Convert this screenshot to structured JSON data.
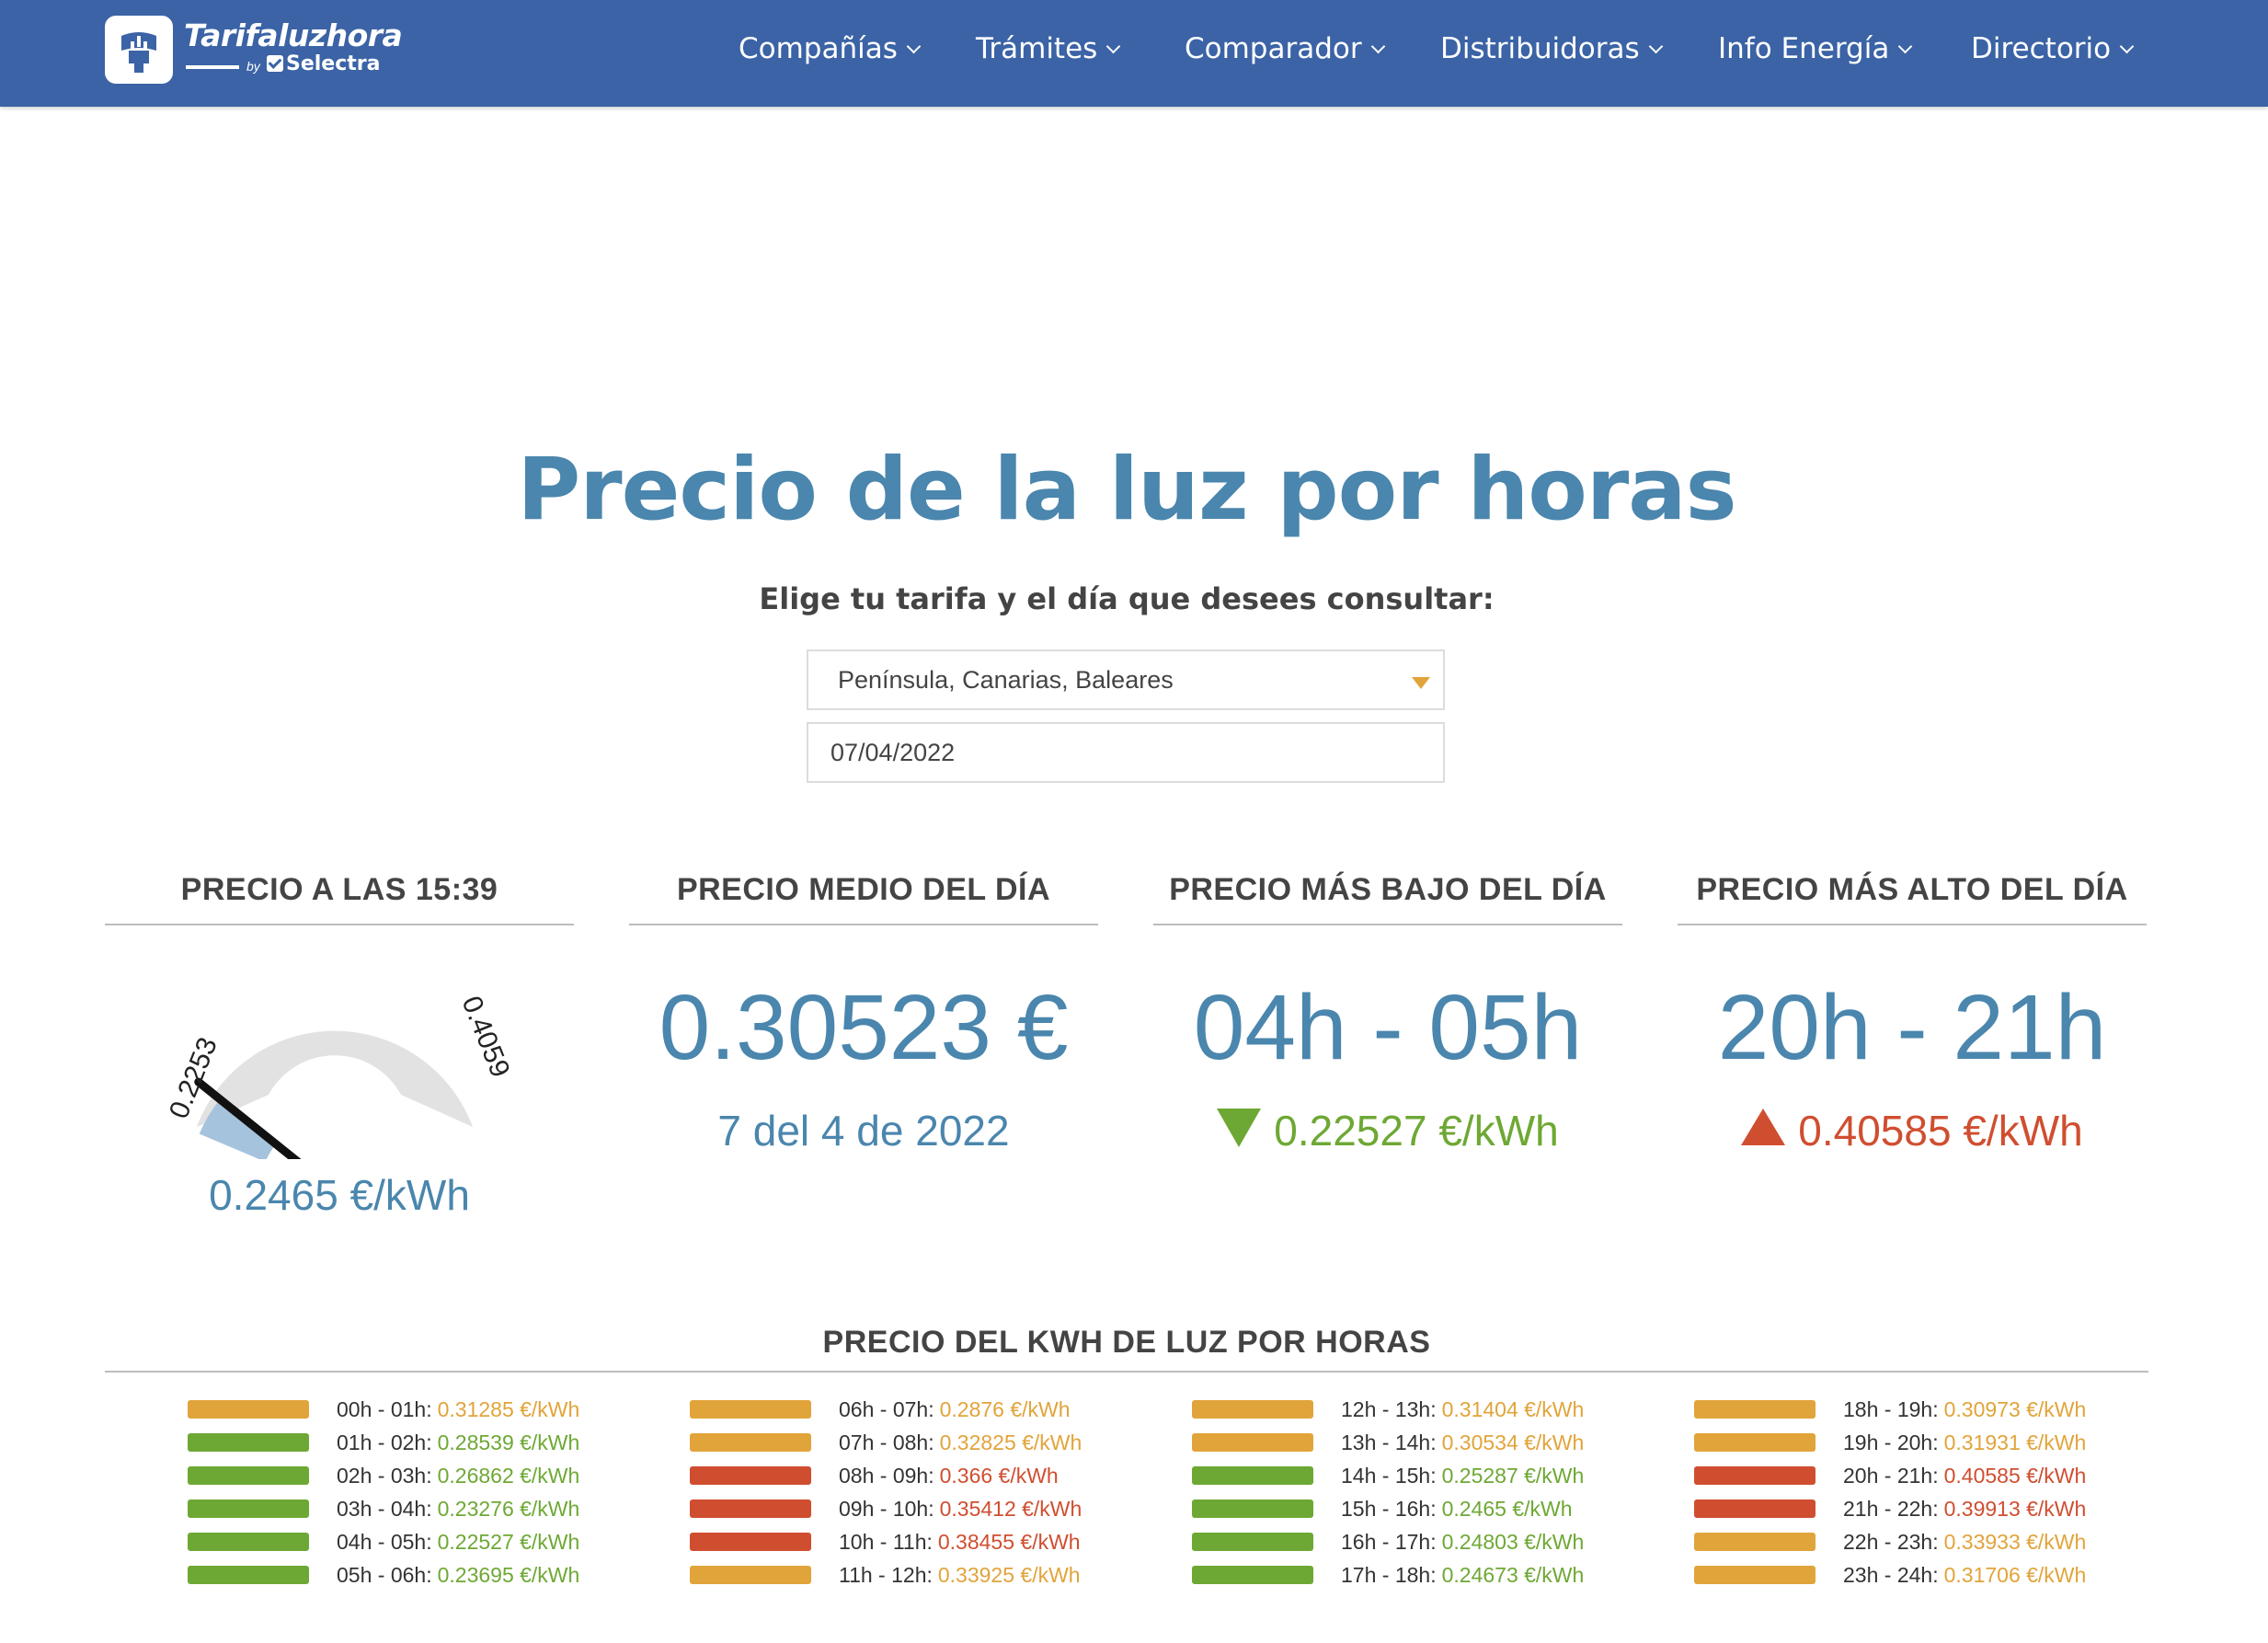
{
  "colors": {
    "header_bg": "#3b63a6",
    "accent_blue": "#4a86ad",
    "low": "#6ea834",
    "mid": "#e1a43a",
    "high": "#d04e30"
  },
  "logo": {
    "name": "Tarifaluzhora",
    "by": "by",
    "brand": "Selectra"
  },
  "nav": [
    {
      "label": "Compañías"
    },
    {
      "label": "Trámites"
    },
    {
      "label": "Comparador"
    },
    {
      "label": "Distribuidoras"
    },
    {
      "label": "Info Energía"
    },
    {
      "label": "Directorio"
    }
  ],
  "page": {
    "title": "Precio de la luz por horas",
    "subtitle": "Elige tu tarifa y el día que desees consultar:"
  },
  "form": {
    "tariff_value": "Península, Canarias, Baleares",
    "date_value": "07/04/2022"
  },
  "stats": {
    "current": {
      "heading": "PRECIO A LAS 15:39",
      "gauge_min": "0.2253",
      "gauge_max": "0.4059",
      "gauge_value": 0.2465,
      "value_text": "0.2465 €/kWh"
    },
    "average": {
      "heading": "PRECIO MEDIO DEL DÍA",
      "value": "0.30523 €",
      "date_text": "7 del 4 de 2022"
    },
    "lowest": {
      "heading": "PRECIO MÁS BAJO DEL DÍA",
      "hours": "04h - 05h",
      "price": "0.22527 €/kWh",
      "icon": "arrow-down-icon"
    },
    "highest": {
      "heading": "PRECIO MÁS ALTO DEL DÍA",
      "hours": "20h - 21h",
      "price": "0.40585 €/kWh",
      "icon": "arrow-up-icon"
    }
  },
  "hourly": {
    "heading": "PRECIO DEL KWH DE LUZ POR HORAS",
    "unit": "€/kWh",
    "items": [
      {
        "label": "00h - 01h:",
        "price": "0.31285",
        "level": "mid"
      },
      {
        "label": "01h - 02h:",
        "price": "0.28539",
        "level": "low"
      },
      {
        "label": "02h - 03h:",
        "price": "0.26862",
        "level": "low"
      },
      {
        "label": "03h - 04h:",
        "price": "0.23276",
        "level": "low"
      },
      {
        "label": "04h - 05h:",
        "price": "0.22527",
        "level": "low"
      },
      {
        "label": "05h - 06h:",
        "price": "0.23695",
        "level": "low"
      },
      {
        "label": "06h - 07h:",
        "price": "0.2876",
        "level": "mid"
      },
      {
        "label": "07h - 08h:",
        "price": "0.32825",
        "level": "mid"
      },
      {
        "label": "08h - 09h:",
        "price": "0.366",
        "level": "high"
      },
      {
        "label": "09h - 10h:",
        "price": "0.35412",
        "level": "high"
      },
      {
        "label": "10h - 11h:",
        "price": "0.38455",
        "level": "high"
      },
      {
        "label": "11h - 12h:",
        "price": "0.33925",
        "level": "mid"
      },
      {
        "label": "12h - 13h:",
        "price": "0.31404",
        "level": "mid"
      },
      {
        "label": "13h - 14h:",
        "price": "0.30534",
        "level": "mid"
      },
      {
        "label": "14h - 15h:",
        "price": "0.25287",
        "level": "low"
      },
      {
        "label": "15h - 16h:",
        "price": "0.2465",
        "level": "low"
      },
      {
        "label": "16h - 17h:",
        "price": "0.24803",
        "level": "low"
      },
      {
        "label": "17h - 18h:",
        "price": "0.24673",
        "level": "low"
      },
      {
        "label": "18h - 19h:",
        "price": "0.30973",
        "level": "mid"
      },
      {
        "label": "19h - 20h:",
        "price": "0.31931",
        "level": "mid"
      },
      {
        "label": "20h - 21h:",
        "price": "0.40585",
        "level": "high"
      },
      {
        "label": "21h - 22h:",
        "price": "0.39913",
        "level": "high"
      },
      {
        "label": "22h - 23h:",
        "price": "0.33933",
        "level": "mid"
      },
      {
        "label": "23h - 24h:",
        "price": "0.31706",
        "level": "mid"
      }
    ]
  }
}
